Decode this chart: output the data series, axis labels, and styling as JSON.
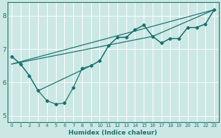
{
  "xlabel": "Humidex (Indice chaleur)",
  "bg_color": "#cce8e4",
  "grid_color": "#ffffff",
  "line_color": "#1a7070",
  "xlim": [
    -0.5,
    23.5
  ],
  "ylim": [
    4.8,
    8.4
  ],
  "xticks": [
    0,
    1,
    2,
    3,
    4,
    5,
    6,
    7,
    8,
    9,
    10,
    11,
    12,
    13,
    14,
    15,
    16,
    17,
    18,
    19,
    20,
    21,
    22,
    23
  ],
  "yticks": [
    5,
    6,
    7,
    8
  ],
  "series_main_x": [
    0,
    1,
    2,
    3,
    4,
    5,
    6,
    7,
    8,
    9,
    10,
    11,
    12,
    13,
    14,
    15,
    16,
    17,
    18,
    19,
    20,
    21,
    22,
    23
  ],
  "series_main_y": [
    6.78,
    6.55,
    6.2,
    5.75,
    5.45,
    5.35,
    5.38,
    5.85,
    6.42,
    6.5,
    6.65,
    7.1,
    7.35,
    7.35,
    7.58,
    7.72,
    7.38,
    7.18,
    7.32,
    7.32,
    7.65,
    7.65,
    7.75,
    8.18
  ],
  "series_smooth_x": [
    0,
    1,
    2,
    3,
    9,
    10,
    11,
    12,
    13,
    14,
    15,
    16,
    17,
    18,
    19,
    20,
    21,
    22,
    23
  ],
  "series_smooth_y": [
    6.78,
    6.55,
    6.2,
    5.75,
    6.5,
    6.65,
    7.1,
    7.35,
    7.35,
    7.58,
    7.72,
    7.38,
    7.18,
    7.32,
    7.32,
    7.65,
    7.65,
    7.75,
    8.18
  ],
  "series_line1_x": [
    0,
    23
  ],
  "series_line1_y": [
    6.55,
    8.18
  ],
  "series_line2_x": [
    0,
    16,
    23
  ],
  "series_line2_y": [
    6.55,
    7.38,
    8.18
  ]
}
